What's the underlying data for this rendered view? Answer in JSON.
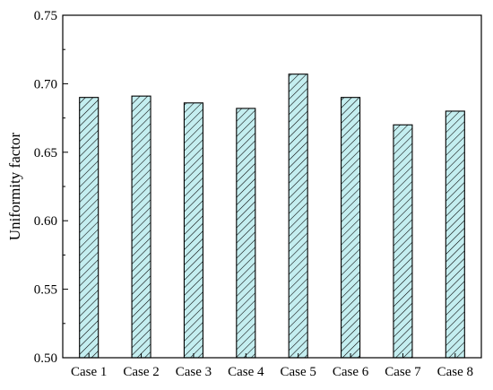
{
  "chart_data": {
    "type": "bar",
    "title": "",
    "xlabel": "",
    "ylabel": "Uniformity factor",
    "categories": [
      "Case 1",
      "Case 2",
      "Case 3",
      "Case 4",
      "Case 5",
      "Case 6",
      "Case 7",
      "Case 8"
    ],
    "values": [
      0.69,
      0.691,
      0.686,
      0.682,
      0.707,
      0.69,
      0.67,
      0.68
    ],
    "ylim": [
      0.5,
      0.75
    ],
    "yticks": [
      0.5,
      0.55,
      0.6,
      0.65,
      0.7,
      0.75
    ],
    "ytick_labels": [
      "0.50",
      "0.55",
      "0.60",
      "0.65",
      "0.70",
      "0.75"
    ],
    "grid": false,
    "legend": "none",
    "bar_fill": "#c4eef0",
    "bar_hatch": "diagonal",
    "bar_edge": "#000000"
  }
}
